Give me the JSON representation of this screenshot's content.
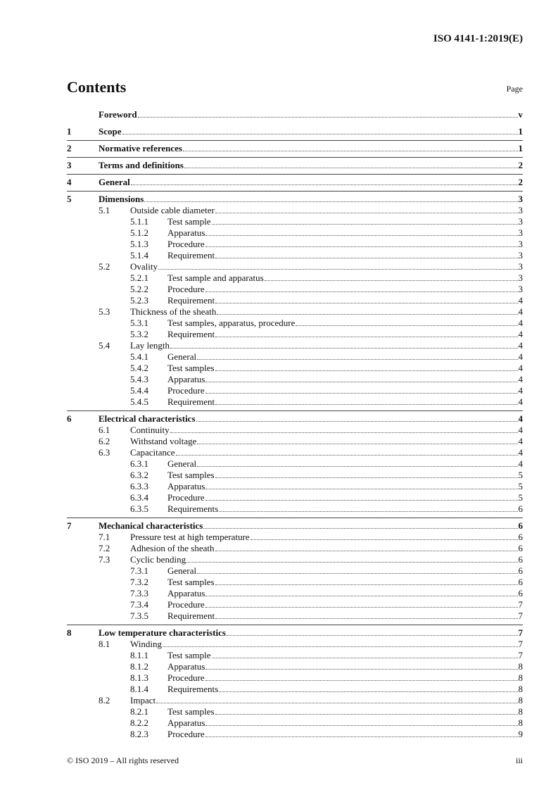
{
  "header": {
    "doc_id": "ISO 4141-1:2019(E)"
  },
  "contents": {
    "title": "Contents",
    "page_label": "Page"
  },
  "entries": [
    {
      "level": 1,
      "num": "",
      "title": "Foreword",
      "page": "v"
    },
    {
      "level": 1,
      "num": "1",
      "title": "Scope",
      "page": "1"
    },
    {
      "level": 1,
      "num": "2",
      "title": "Normative references",
      "page": "1"
    },
    {
      "level": 1,
      "num": "3",
      "title": "Terms and definitions",
      "page": "2"
    },
    {
      "level": 1,
      "num": "4",
      "title": "General",
      "page": "2"
    },
    {
      "level": 1,
      "num": "5",
      "title": "Dimensions",
      "page": "3"
    },
    {
      "level": 2,
      "num": "5.1",
      "title": "Outside cable diameter",
      "page": "3"
    },
    {
      "level": 3,
      "num": "5.1.1",
      "title": "Test sample",
      "page": "3"
    },
    {
      "level": 3,
      "num": "5.1.2",
      "title": "Apparatus",
      "page": "3"
    },
    {
      "level": 3,
      "num": "5.1.3",
      "title": "Procedure",
      "page": "3"
    },
    {
      "level": 3,
      "num": "5.1.4",
      "title": "Requirement",
      "page": "3"
    },
    {
      "level": 2,
      "num": "5.2",
      "title": "Ovality",
      "page": "3"
    },
    {
      "level": 3,
      "num": "5.2.1",
      "title": "Test sample and apparatus",
      "page": "3"
    },
    {
      "level": 3,
      "num": "5.2.2",
      "title": "Procedure",
      "page": "3"
    },
    {
      "level": 3,
      "num": "5.2.3",
      "title": "Requirement",
      "page": "4"
    },
    {
      "level": 2,
      "num": "5.3",
      "title": "Thickness of the sheath",
      "page": "4"
    },
    {
      "level": 3,
      "num": "5.3.1",
      "title": "Test samples, apparatus, procedure",
      "page": "4"
    },
    {
      "level": 3,
      "num": "5.3.2",
      "title": "Requirement",
      "page": "4"
    },
    {
      "level": 2,
      "num": "5.4",
      "title": "Lay length",
      "page": "4"
    },
    {
      "level": 3,
      "num": "5.4.1",
      "title": "General",
      "page": "4"
    },
    {
      "level": 3,
      "num": "5.4.2",
      "title": "Test samples",
      "page": "4"
    },
    {
      "level": 3,
      "num": "5.4.3",
      "title": "Apparatus",
      "page": "4"
    },
    {
      "level": 3,
      "num": "5.4.4",
      "title": "Procedure",
      "page": "4"
    },
    {
      "level": 3,
      "num": "5.4.5",
      "title": "Requirement",
      "page": "4"
    },
    {
      "level": 1,
      "num": "6",
      "title": "Electrical characteristics",
      "page": "4"
    },
    {
      "level": 2,
      "num": "6.1",
      "title": "Continuity",
      "page": "4"
    },
    {
      "level": 2,
      "num": "6.2",
      "title": "Withstand voltage",
      "page": "4"
    },
    {
      "level": 2,
      "num": "6.3",
      "title": "Capacitance",
      "page": "4"
    },
    {
      "level": 3,
      "num": "6.3.1",
      "title": "General",
      "page": "4"
    },
    {
      "level": 3,
      "num": "6.3.2",
      "title": "Test samples",
      "page": "5"
    },
    {
      "level": 3,
      "num": "6.3.3",
      "title": "Apparatus",
      "page": "5"
    },
    {
      "level": 3,
      "num": "6.3.4",
      "title": "Procedure",
      "page": "5"
    },
    {
      "level": 3,
      "num": "6.3.5",
      "title": "Requirements",
      "page": "6"
    },
    {
      "level": 1,
      "num": "7",
      "title": "Mechanical characteristics",
      "page": "6"
    },
    {
      "level": 2,
      "num": "7.1",
      "title": "Pressure test at high temperature",
      "page": "6"
    },
    {
      "level": 2,
      "num": "7.2",
      "title": "Adhesion of the sheath",
      "page": "6"
    },
    {
      "level": 2,
      "num": "7.3",
      "title": "Cyclic bending",
      "page": "6"
    },
    {
      "level": 3,
      "num": "7.3.1",
      "title": "General",
      "page": "6"
    },
    {
      "level": 3,
      "num": "7.3.2",
      "title": "Test samples",
      "page": "6"
    },
    {
      "level": 3,
      "num": "7.3.3",
      "title": "Apparatus",
      "page": "6"
    },
    {
      "level": 3,
      "num": "7.3.4",
      "title": "Procedure",
      "page": "7"
    },
    {
      "level": 3,
      "num": "7.3.5",
      "title": "Requirement",
      "page": "7"
    },
    {
      "level": 1,
      "num": "8",
      "title": "Low temperature characteristics",
      "page": "7"
    },
    {
      "level": 2,
      "num": "8.1",
      "title": "Winding",
      "page": "7"
    },
    {
      "level": 3,
      "num": "8.1.1",
      "title": "Test sample",
      "page": "7"
    },
    {
      "level": 3,
      "num": "8.1.2",
      "title": "Apparatus",
      "page": "8"
    },
    {
      "level": 3,
      "num": "8.1.3",
      "title": "Procedure",
      "page": "8"
    },
    {
      "level": 3,
      "num": "8.1.4",
      "title": "Requirements",
      "page": "8"
    },
    {
      "level": 2,
      "num": "8.2",
      "title": "Impact",
      "page": "8"
    },
    {
      "level": 3,
      "num": "8.2.1",
      "title": "Test samples",
      "page": "8"
    },
    {
      "level": 3,
      "num": "8.2.2",
      "title": "Apparatus",
      "page": "8"
    },
    {
      "level": 3,
      "num": "8.2.3",
      "title": "Procedure",
      "page": "9"
    }
  ],
  "footer": {
    "copyright": "© ISO 2019 – All rights reserved",
    "page_number": "iii"
  }
}
